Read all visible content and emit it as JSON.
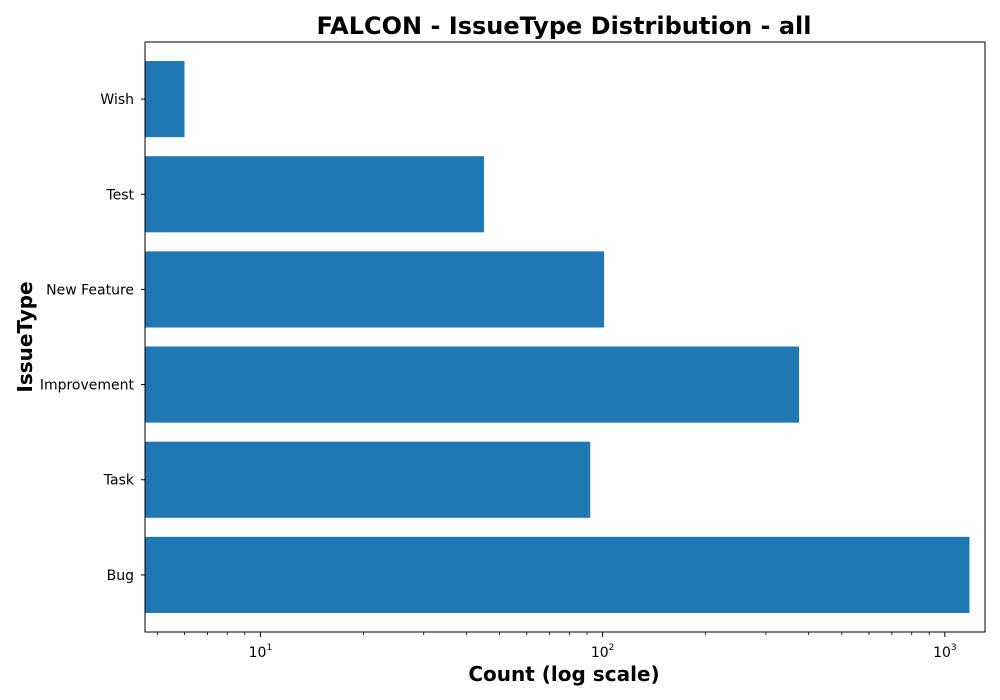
{
  "chart_data": {
    "type": "bar",
    "orientation": "horizontal",
    "title": "FALCON - IssueType Distribution - all",
    "xlabel": "Count (log scale)",
    "ylabel": "IssueType",
    "x_scale": "log",
    "xlim": [
      4.6,
      1310
    ],
    "x_ticks": [
      {
        "value": 10,
        "base": "10",
        "exp": "1"
      },
      {
        "value": 100,
        "base": "10",
        "exp": "2"
      },
      {
        "value": 1000,
        "base": "10",
        "exp": "3"
      }
    ],
    "categories": [
      "Bug",
      "Task",
      "Improvement",
      "New Feature",
      "Test",
      "Wish"
    ],
    "values": [
      1180,
      92,
      375,
      101,
      45,
      6
    ],
    "bar_color": "#1f77b4",
    "grid": false
  }
}
